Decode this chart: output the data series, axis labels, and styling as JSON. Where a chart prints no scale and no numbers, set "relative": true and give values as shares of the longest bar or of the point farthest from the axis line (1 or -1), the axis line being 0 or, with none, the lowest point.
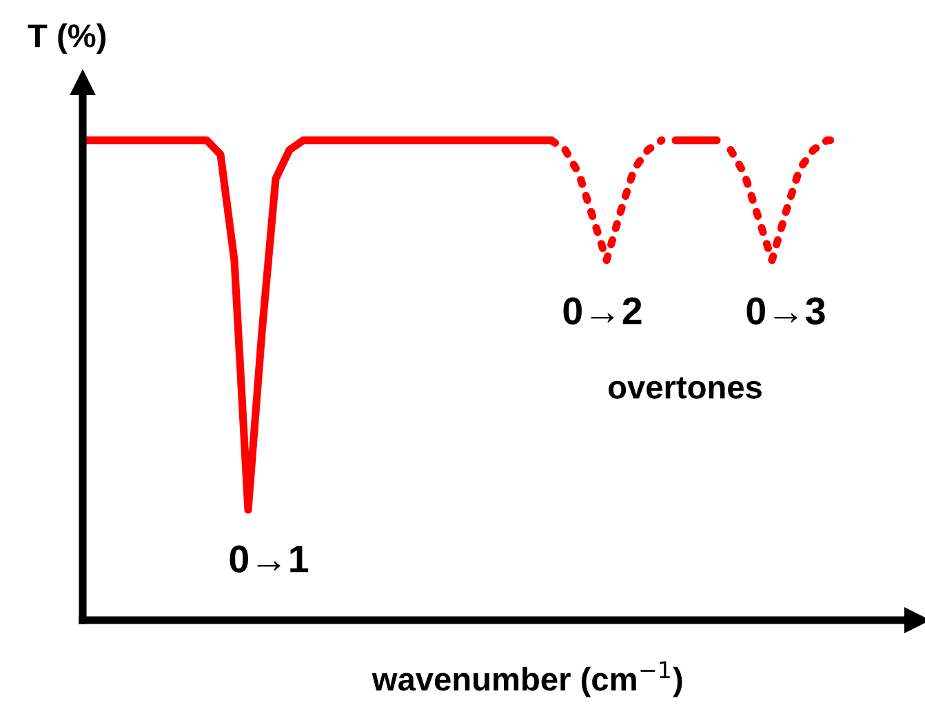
{
  "chart_data": {
    "type": "line",
    "relative": true,
    "ylabel": "T (%)",
    "xlabel": "wavenumber (cm$^{−1}$)",
    "categories": [
      null,
      null,
      null,
      null,
      null,
      null,
      null,
      null,
      null,
      null,
      null,
      null,
      null,
      null,
      null,
      null,
      null,
      null,
      null,
      null,
      null,
      null,
      null,
      null,
      null,
      null,
      null,
      null,
      null,
      null,
      null,
      null,
      null,
      null,
      null,
      null,
      null,
      null,
      null,
      null,
      null,
      null,
      null,
      null,
      null,
      null,
      null,
      null,
      null,
      null,
      null,
      null,
      null,
      null,
      null,
      null,
      null,
      null,
      null,
      null,
      null
    ],
    "series": [
      {
        "color": "#ff0000",
        "line_style": "solid",
        "values": [
          1,
          1,
          1,
          1,
          1,
          1,
          1,
          1,
          1,
          1,
          0.97,
          0.75,
          0.23,
          0.6,
          0.92,
          0.98,
          1,
          1,
          1,
          1,
          1,
          1,
          1,
          1,
          1,
          1,
          1,
          1,
          1,
          1,
          1,
          1,
          1,
          1,
          1,
          null,
          null,
          null,
          null,
          null,
          null,
          null,
          null,
          null,
          null,
          null,
          null,
          null,
          null,
          null,
          null,
          null,
          null,
          null,
          null,
          null,
          null,
          null,
          null,
          null,
          null
        ]
      },
      {
        "color": "#ff0000",
        "line_style": "dotted",
        "values": [
          null,
          null,
          null,
          null,
          null,
          null,
          null,
          null,
          null,
          null,
          null,
          null,
          null,
          null,
          null,
          null,
          null,
          null,
          null,
          null,
          null,
          null,
          null,
          null,
          null,
          null,
          null,
          null,
          null,
          null,
          null,
          null,
          null,
          null,
          1,
          0.98,
          0.93,
          0.84,
          0.75,
          0.85,
          0.94,
          0.98,
          1,
          null,
          null,
          null,
          null,
          0.98,
          0.93,
          0.84,
          0.75,
          0.85,
          0.94,
          0.98,
          1,
          1,
          null,
          null,
          null,
          null,
          null
        ]
      },
      {
        "color": "#ff0000",
        "line_style": "solid",
        "values": [
          null,
          null,
          null,
          null,
          null,
          null,
          null,
          null,
          null,
          null,
          null,
          null,
          null,
          null,
          null,
          null,
          null,
          null,
          null,
          null,
          null,
          null,
          null,
          null,
          null,
          null,
          null,
          null,
          null,
          null,
          null,
          null,
          null,
          null,
          null,
          null,
          null,
          null,
          null,
          null,
          null,
          null,
          null,
          1,
          1,
          1,
          1,
          null,
          null,
          null,
          null,
          null,
          null,
          null,
          null,
          null,
          null,
          null,
          null,
          null,
          null
        ]
      }
    ],
    "annotations": [
      "0→1",
      "0→2",
      "0→3",
      "overtones"
    ],
    "legend": false
  }
}
